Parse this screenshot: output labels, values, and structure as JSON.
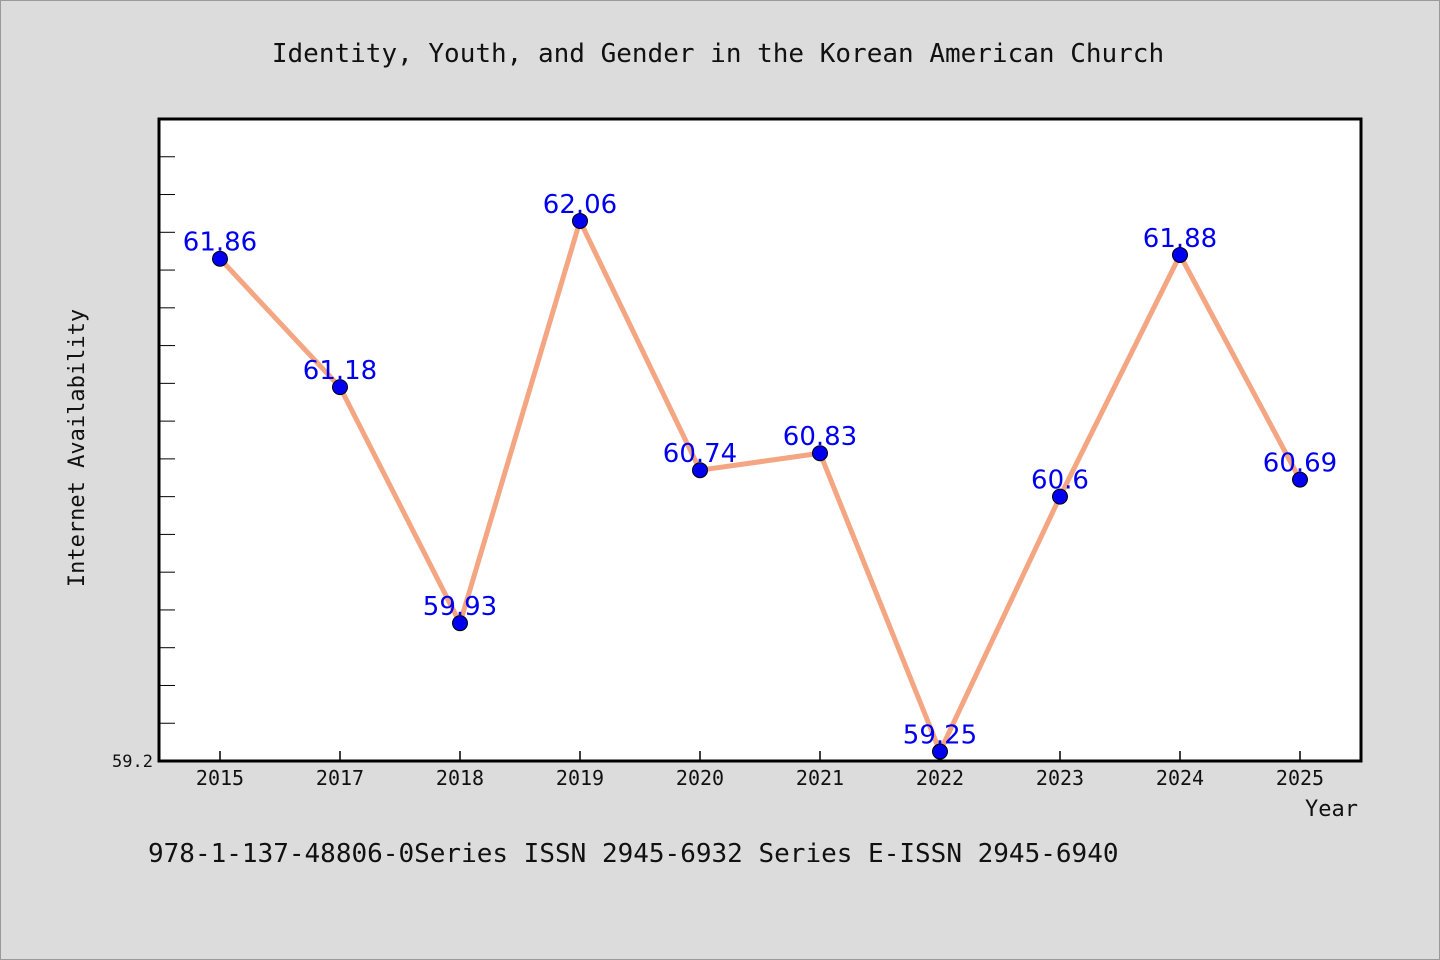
{
  "chart_data": {
    "type": "line",
    "title": "Identity, Youth, and Gender in the Korean American Church",
    "xlabel": "Year",
    "ylabel": "Internet Availability",
    "categories": [
      "2015",
      "2017",
      "2018",
      "2019",
      "2020",
      "2021",
      "2022",
      "2023",
      "2024",
      "2025"
    ],
    "series": [
      {
        "values": [
          61.86,
          61.18,
          59.93,
          62.06,
          60.74,
          60.83,
          59.25,
          60.6,
          61.88,
          60.69
        ],
        "labels": [
          "61.86",
          "61.18",
          "59.93",
          "62.06",
          "60.74",
          "60.83",
          "59.25",
          "60.6",
          "61.88",
          "60.69"
        ]
      }
    ],
    "ylim": [
      59.2,
      62.6
    ],
    "yticks_labeled": [
      "59.2"
    ],
    "grid": false,
    "legend": "none",
    "colors": {
      "line": "#f4a582",
      "marker": "#0000ee",
      "data_label": "#0000ee"
    }
  },
  "footer": {
    "text": "978-1-137-48806-0Series ISSN 2945-6932 Series E-ISSN 2945-6940"
  }
}
